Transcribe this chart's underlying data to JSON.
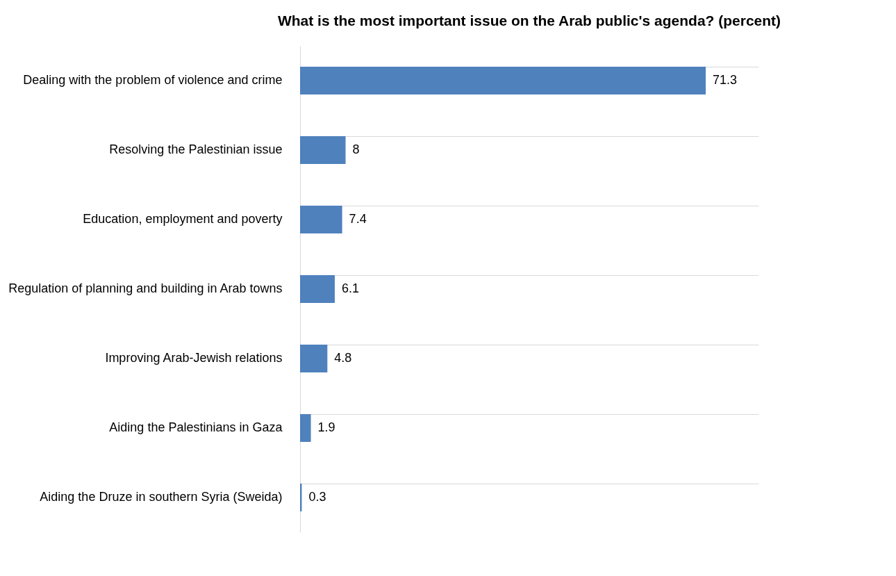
{
  "chart_data": {
    "type": "bar",
    "orientation": "horizontal",
    "title": "What is the most important issue on the Arab public's agenda? (percent)",
    "categories": [
      "Dealing with the problem of violence and crime",
      "Resolving the Palestinian issue",
      "Education, employment and poverty",
      "Regulation of planning and building in Arab towns",
      "Improving Arab-Jewish relations",
      "Aiding the Palestinians in Gaza",
      "Aiding the Druze in southern Syria (Sweida)"
    ],
    "values": [
      71.3,
      8,
      7.4,
      6.1,
      4.8,
      1.9,
      0.3
    ],
    "color": "#4f81bd",
    "data_labels": true,
    "grid": "y",
    "tick_labels": "y"
  }
}
